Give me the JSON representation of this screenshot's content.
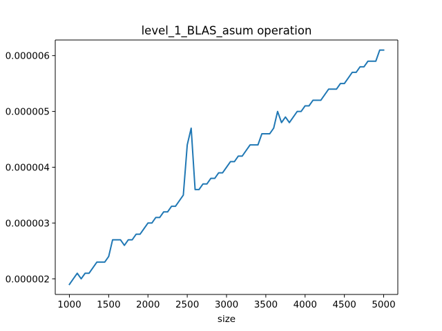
{
  "chart_data": {
    "type": "line",
    "title": "level_1_BLAS_asum operation",
    "xlabel": "size",
    "ylabel": "",
    "xlim": [
      820,
      5180
    ],
    "ylim": [
      1.72e-06,
      6.28e-06
    ],
    "grid": false,
    "legend": "none",
    "colors": {
      "line": "#1f77b4",
      "axes": "#000000",
      "background": "#ffffff"
    },
    "x_ticks": [
      {
        "value": 1000,
        "label": "1000"
      },
      {
        "value": 1500,
        "label": "1500"
      },
      {
        "value": 2000,
        "label": "2000"
      },
      {
        "value": 2500,
        "label": "2500"
      },
      {
        "value": 3000,
        "label": "3000"
      },
      {
        "value": 3500,
        "label": "3500"
      },
      {
        "value": 4000,
        "label": "4000"
      },
      {
        "value": 4500,
        "label": "4500"
      },
      {
        "value": 5000,
        "label": "5000"
      }
    ],
    "y_ticks": [
      {
        "value": 2e-06,
        "label": "0.000002"
      },
      {
        "value": 3e-06,
        "label": "0.000003"
      },
      {
        "value": 4e-06,
        "label": "0.000004"
      },
      {
        "value": 5e-06,
        "label": "0.000005"
      },
      {
        "value": 6e-06,
        "label": "0.000006"
      }
    ],
    "series": [
      {
        "x": [
          1000,
          1050,
          1100,
          1150,
          1200,
          1250,
          1300,
          1350,
          1400,
          1450,
          1500,
          1550,
          1600,
          1650,
          1700,
          1750,
          1800,
          1850,
          1900,
          1950,
          2000,
          2050,
          2100,
          2150,
          2200,
          2250,
          2300,
          2350,
          2400,
          2450,
          2500,
          2550,
          2600,
          2650,
          2700,
          2750,
          2800,
          2850,
          2900,
          2950,
          3000,
          3050,
          3100,
          3150,
          3200,
          3250,
          3300,
          3350,
          3400,
          3450,
          3500,
          3550,
          3600,
          3650,
          3700,
          3750,
          3800,
          3850,
          3900,
          3950,
          4000,
          4050,
          4100,
          4150,
          4200,
          4250,
          4300,
          4350,
          4400,
          4450,
          4500,
          4550,
          4600,
          4650,
          4700,
          4750,
          4800,
          4850,
          4900,
          4950,
          5000
        ],
        "y": [
          1.9e-06,
          2e-06,
          2.1e-06,
          2e-06,
          2.1e-06,
          2.1e-06,
          2.2e-06,
          2.3e-06,
          2.3e-06,
          2.3e-06,
          2.4e-06,
          2.7e-06,
          2.7e-06,
          2.7e-06,
          2.6e-06,
          2.7e-06,
          2.7e-06,
          2.8e-06,
          2.8e-06,
          2.9e-06,
          3e-06,
          3e-06,
          3.1e-06,
          3.1e-06,
          3.2e-06,
          3.2e-06,
          3.3e-06,
          3.3e-06,
          3.4e-06,
          3.5e-06,
          4.4e-06,
          4.7e-06,
          3.6e-06,
          3.6e-06,
          3.7e-06,
          3.7e-06,
          3.8e-06,
          3.8e-06,
          3.9e-06,
          3.9e-06,
          4e-06,
          4.1e-06,
          4.1e-06,
          4.2e-06,
          4.2e-06,
          4.3e-06,
          4.4e-06,
          4.4e-06,
          4.4e-06,
          4.6e-06,
          4.6e-06,
          4.6e-06,
          4.7e-06,
          5e-06,
          4.8e-06,
          4.9e-06,
          4.8e-06,
          4.9e-06,
          5e-06,
          5e-06,
          5.1e-06,
          5.1e-06,
          5.2e-06,
          5.2e-06,
          5.2e-06,
          5.3e-06,
          5.4e-06,
          5.4e-06,
          5.4e-06,
          5.5e-06,
          5.5e-06,
          5.6e-06,
          5.7e-06,
          5.7e-06,
          5.8e-06,
          5.8e-06,
          5.9e-06,
          5.9e-06,
          5.9e-06,
          6.1e-06,
          6.1e-06
        ]
      }
    ]
  }
}
